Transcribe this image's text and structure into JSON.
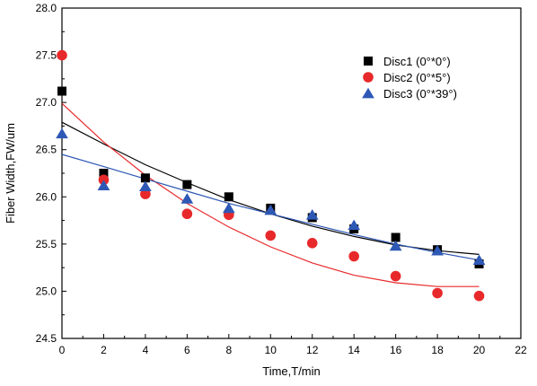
{
  "chart_data": {
    "type": "scatter",
    "title": "",
    "xlabel": "Time,T/min",
    "ylabel": "Fiber Width,FW/um",
    "xlim": [
      0,
      22
    ],
    "ylim": [
      24.5,
      28.0
    ],
    "xticks": [
      0,
      2,
      4,
      6,
      8,
      10,
      12,
      14,
      16,
      18,
      20,
      22
    ],
    "yticks": [
      24.5,
      25.0,
      25.5,
      26.0,
      26.5,
      27.0,
      27.5,
      28.0
    ],
    "ytick_labels": [
      "24.5",
      "25.0",
      "25.5",
      "26.0",
      "26.5",
      "27.0",
      "27.5",
      "28.0"
    ],
    "grid": false,
    "legend_position": "top-right",
    "series": [
      {
        "name": "Disc1 (0°*0°)",
        "marker": "square",
        "color": "#000000",
        "x": [
          0,
          2,
          4,
          6,
          8,
          10,
          12,
          14,
          16,
          18,
          20
        ],
        "y": [
          27.12,
          26.25,
          26.2,
          26.13,
          26.0,
          25.88,
          25.78,
          25.66,
          25.57,
          25.44,
          25.29
        ],
        "fit": [
          26.79,
          26.56,
          26.34,
          26.15,
          25.97,
          25.82,
          25.69,
          25.58,
          25.49,
          25.43,
          25.39
        ]
      },
      {
        "name": "Disc2 (0°*5°)",
        "marker": "circle",
        "color": "#e8292b",
        "x": [
          0,
          2,
          4,
          6,
          8,
          10,
          12,
          14,
          16,
          18,
          20
        ],
        "y": [
          27.5,
          26.18,
          26.03,
          25.82,
          25.81,
          25.59,
          25.51,
          25.37,
          25.16,
          24.98,
          24.95
        ],
        "fit": [
          26.99,
          26.58,
          26.23,
          25.93,
          25.68,
          25.47,
          25.3,
          25.17,
          25.09,
          25.05,
          25.05
        ]
      },
      {
        "name": "Disc3 (0°*39°)",
        "marker": "triangle",
        "color": "#2e58b5",
        "x": [
          0,
          2,
          4,
          6,
          8,
          10,
          12,
          14,
          16,
          18,
          20
        ],
        "y": [
          26.67,
          26.12,
          26.11,
          25.98,
          25.88,
          25.86,
          25.81,
          25.7,
          25.48,
          25.43,
          25.33
        ],
        "fit": [
          26.45,
          26.32,
          26.19,
          26.06,
          25.93,
          25.82,
          25.71,
          25.6,
          25.5,
          25.41,
          25.33
        ]
      }
    ]
  }
}
